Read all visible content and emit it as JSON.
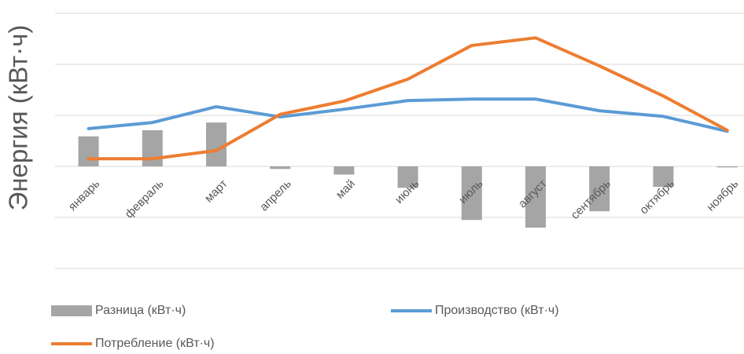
{
  "chart_data": {
    "type": "bar_line",
    "y_label": "Энергия (кВт·ч)",
    "categories": [
      "январь",
      "февраль",
      "март",
      "апрель",
      "май",
      "июнь",
      "июль",
      "август",
      "сентябрь",
      "октябрь",
      "ноябрь"
    ],
    "series": [
      {
        "name": "Разница (кВт·ч)",
        "type": "bar",
        "color": "#a5a5a5",
        "values": [
          0.59,
          0.71,
          0.86,
          -0.05,
          -0.16,
          -0.42,
          -1.05,
          -1.2,
          -0.88,
          -0.4,
          -0.02
        ]
      },
      {
        "name": "Производство (кВт·ч)",
        "type": "line",
        "color": "#5b9bd5",
        "values": [
          0.74,
          0.86,
          1.17,
          0.97,
          1.12,
          1.29,
          1.32,
          1.32,
          1.09,
          0.98,
          0.69
        ]
      },
      {
        "name": "Потребление (кВт·ч)",
        "type": "line",
        "color": "#ed7d31",
        "values": [
          0.15,
          0.15,
          0.31,
          1.02,
          1.28,
          1.71,
          2.37,
          2.52,
          1.97,
          1.38,
          0.71
        ]
      }
    ],
    "ylim": [
      -2,
      3
    ],
    "yticks": [
      -2,
      -1,
      0,
      1,
      2,
      3
    ],
    "ytick_labels": false,
    "grid": true
  }
}
